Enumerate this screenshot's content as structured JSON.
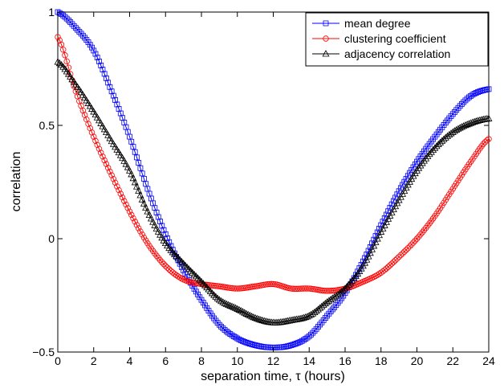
{
  "chart_data": {
    "type": "line",
    "title": "",
    "xlabel": "separation time, τ (hours)",
    "ylabel": "correlation",
    "xlim": [
      0,
      24
    ],
    "ylim": [
      -0.5,
      1
    ],
    "xticks": [
      0,
      2,
      4,
      6,
      8,
      10,
      12,
      14,
      16,
      18,
      20,
      22,
      24
    ],
    "yticks": [
      -0.5,
      0,
      0.5,
      1
    ],
    "xtick_labels": [
      "0",
      "2",
      "4",
      "6",
      "8",
      "10",
      "12",
      "14",
      "16",
      "18",
      "20",
      "22",
      "24"
    ],
    "ytick_labels": [
      "−0.5",
      "0",
      "0.5",
      "1"
    ],
    "grid": false,
    "legend_position": "top-right",
    "series": [
      {
        "name": "mean degree",
        "color": "#0000ff",
        "marker": "square",
        "x": [
          0,
          1,
          2,
          3,
          4,
          5,
          6,
          7,
          8,
          9,
          10,
          11,
          12,
          13,
          14,
          15,
          16,
          17,
          18,
          19,
          20,
          21,
          22,
          23,
          24
        ],
        "y": [
          1.0,
          0.93,
          0.83,
          0.65,
          0.45,
          0.22,
          0.02,
          -0.14,
          -0.27,
          -0.38,
          -0.44,
          -0.47,
          -0.48,
          -0.47,
          -0.43,
          -0.34,
          -0.24,
          -0.1,
          0.06,
          0.21,
          0.34,
          0.45,
          0.55,
          0.63,
          0.66
        ]
      },
      {
        "name": "clustering coefficient",
        "color": "#ff0000",
        "marker": "circle",
        "x": [
          0,
          1,
          2,
          3,
          4,
          5,
          6,
          7,
          8,
          9,
          10,
          11,
          12,
          13,
          14,
          15,
          16,
          17,
          18,
          19,
          20,
          21,
          22,
          23,
          24
        ],
        "y": [
          0.89,
          0.65,
          0.45,
          0.28,
          0.12,
          -0.02,
          -0.12,
          -0.18,
          -0.2,
          -0.21,
          -0.22,
          -0.21,
          -0.2,
          -0.22,
          -0.22,
          -0.23,
          -0.22,
          -0.19,
          -0.15,
          -0.08,
          0.0,
          0.1,
          0.22,
          0.34,
          0.44
        ]
      },
      {
        "name": "adjacency correlation",
        "color": "#000000",
        "marker": "triangle",
        "x": [
          0,
          1,
          2,
          3,
          4,
          5,
          6,
          7,
          8,
          9,
          10,
          11,
          12,
          13,
          14,
          15,
          16,
          17,
          18,
          19,
          20,
          21,
          22,
          23,
          24
        ],
        "y": [
          0.78,
          0.68,
          0.56,
          0.43,
          0.3,
          0.12,
          -0.02,
          -0.11,
          -0.19,
          -0.27,
          -0.31,
          -0.35,
          -0.37,
          -0.36,
          -0.34,
          -0.28,
          -0.22,
          -0.12,
          0.03,
          0.17,
          0.3,
          0.4,
          0.47,
          0.51,
          0.53
        ]
      }
    ]
  }
}
